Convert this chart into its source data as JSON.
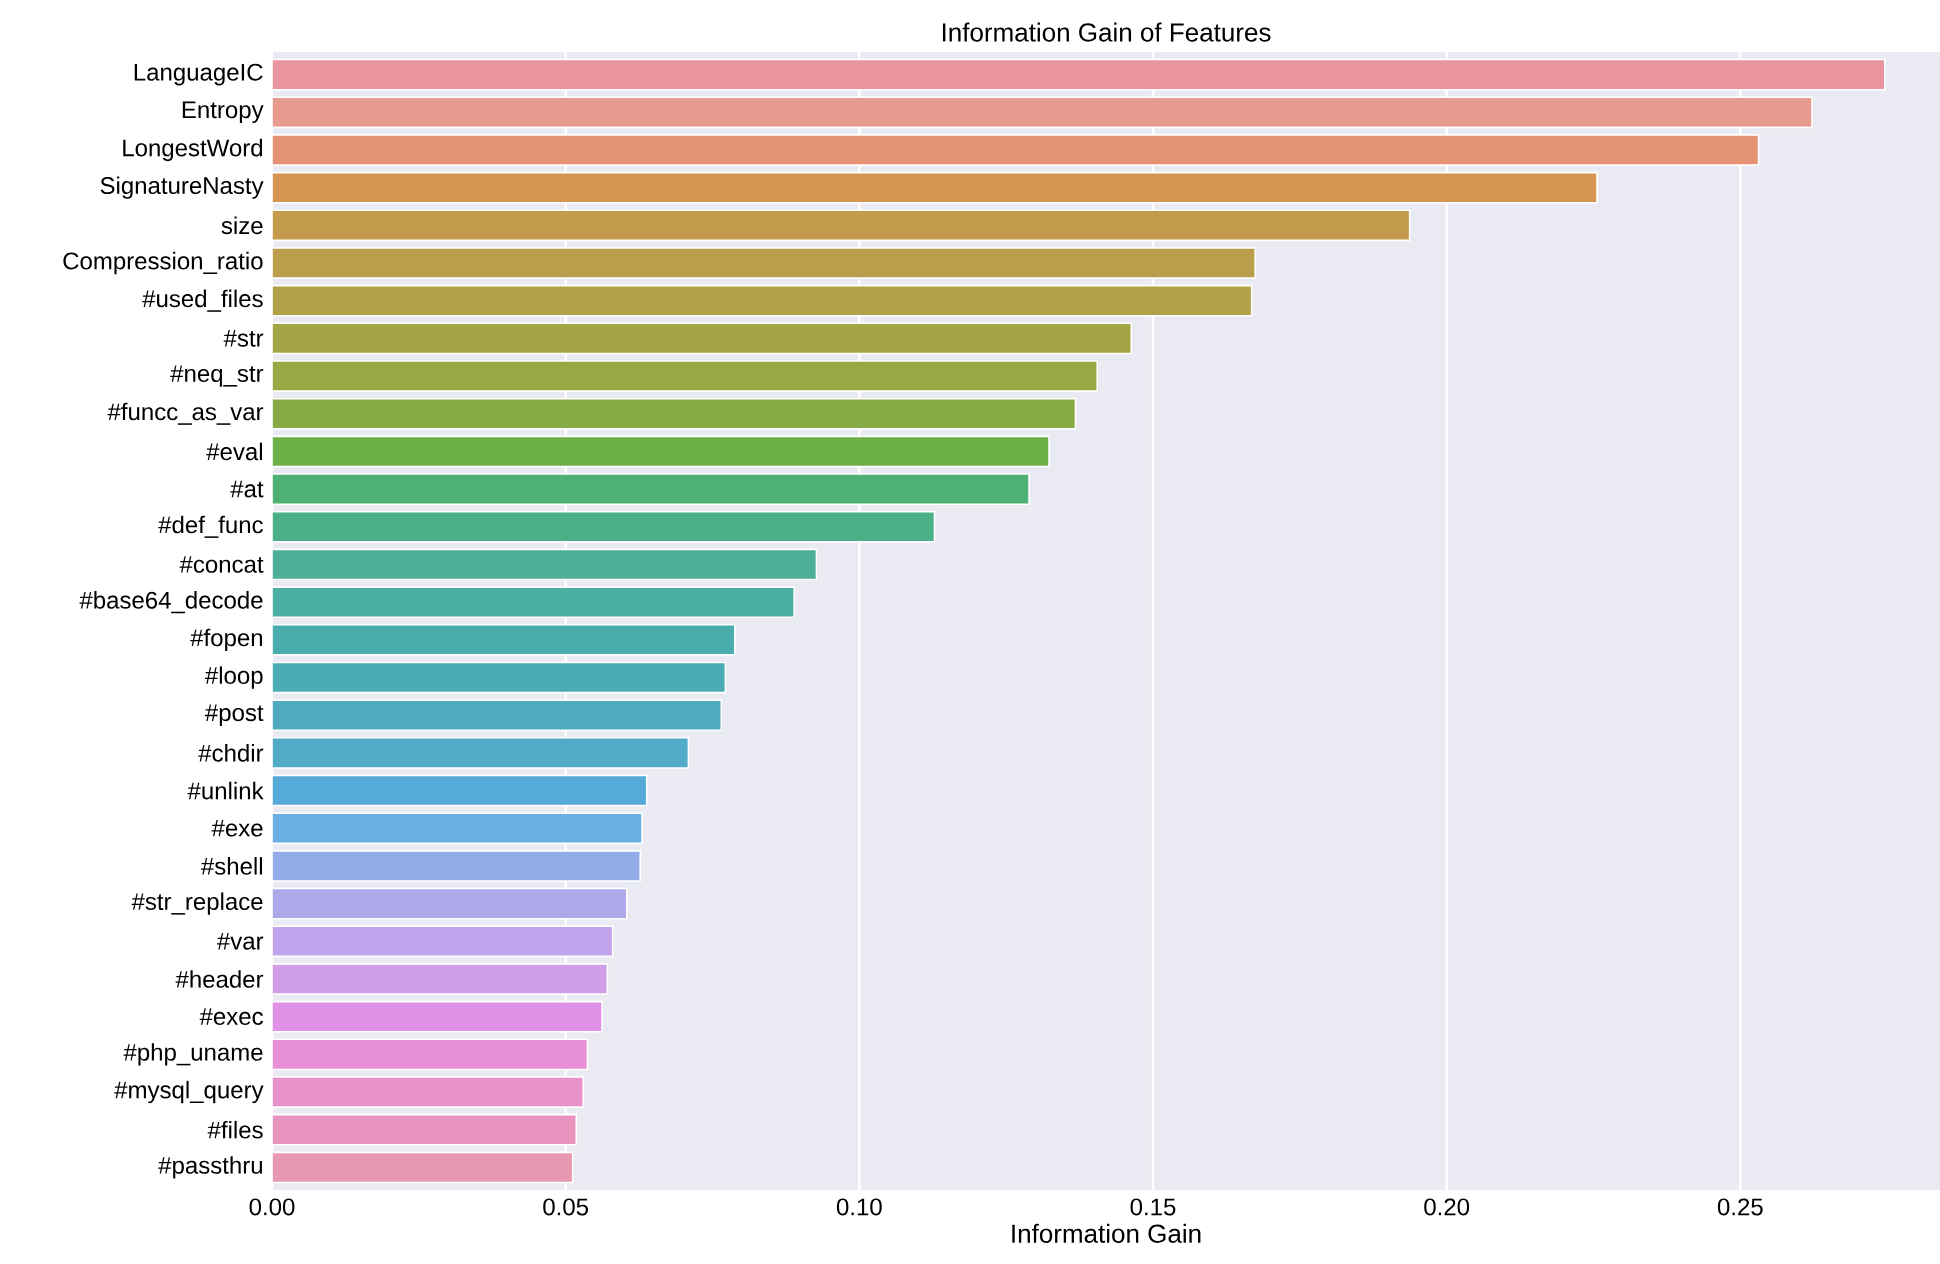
{
  "chart_data": {
    "type": "bar",
    "orientation": "horizontal",
    "title": "Information Gain of Features",
    "xlabel": "Information Gain",
    "categories": [
      "LanguageIC",
      "Entropy",
      "LongestWord",
      "SignatureNasty",
      "size",
      "Compression_ratio",
      "#used_files",
      "#str",
      "#neq_str",
      "#funcc_as_var",
      "#eval",
      "#at",
      "#def_func",
      "#concat",
      "#base64_decode",
      "#fopen",
      "#loop",
      "#post",
      "#chdir",
      "#unlink",
      "#exe",
      "#shell",
      "#str_replace",
      "#var",
      "#header",
      "#exec",
      "#php_uname",
      "#mysql_query",
      "#files",
      "#passthru"
    ],
    "values": [
      0.2746,
      0.2622,
      0.2531,
      0.2256,
      0.1937,
      0.1674,
      0.1668,
      0.1463,
      0.1405,
      0.1368,
      0.1323,
      0.1289,
      0.1128,
      0.0927,
      0.0889,
      0.0788,
      0.0772,
      0.0765,
      0.0709,
      0.0638,
      0.063,
      0.0627,
      0.0604,
      0.058,
      0.0571,
      0.0562,
      0.0537,
      0.053,
      0.0518,
      0.0512
    ],
    "colors": [
      "#e8959e",
      "#e89a8f",
      "#e39374",
      "#d5944f",
      "#c49a4d",
      "#bb9e4b",
      "#b1a247",
      "#a4a545",
      "#97a844",
      "#86ab45",
      "#6cb048",
      "#4eb174",
      "#4baf88",
      "#4cae96",
      "#4baea2",
      "#4aadad",
      "#4cacb5",
      "#4dabbd",
      "#52aac9",
      "#55aad7",
      "#6aafe3",
      "#92ace9",
      "#aea8ea",
      "#c0a3ea",
      "#cf9ee6",
      "#e092e6",
      "#e790d8",
      "#e891cb",
      "#e894bf",
      "#e898b0"
    ],
    "xlim": [
      0,
      0.284
    ],
    "xticks": [
      {
        "value": 0,
        "label": "0.00"
      },
      {
        "value": 0.05,
        "label": "0.05"
      },
      {
        "value": 0.1,
        "label": "0.10"
      },
      {
        "value": 0.15,
        "label": "0.15"
      },
      {
        "value": 0.2,
        "label": "0.20"
      },
      {
        "value": 0.25,
        "label": "0.25"
      }
    ],
    "grid": "x"
  }
}
